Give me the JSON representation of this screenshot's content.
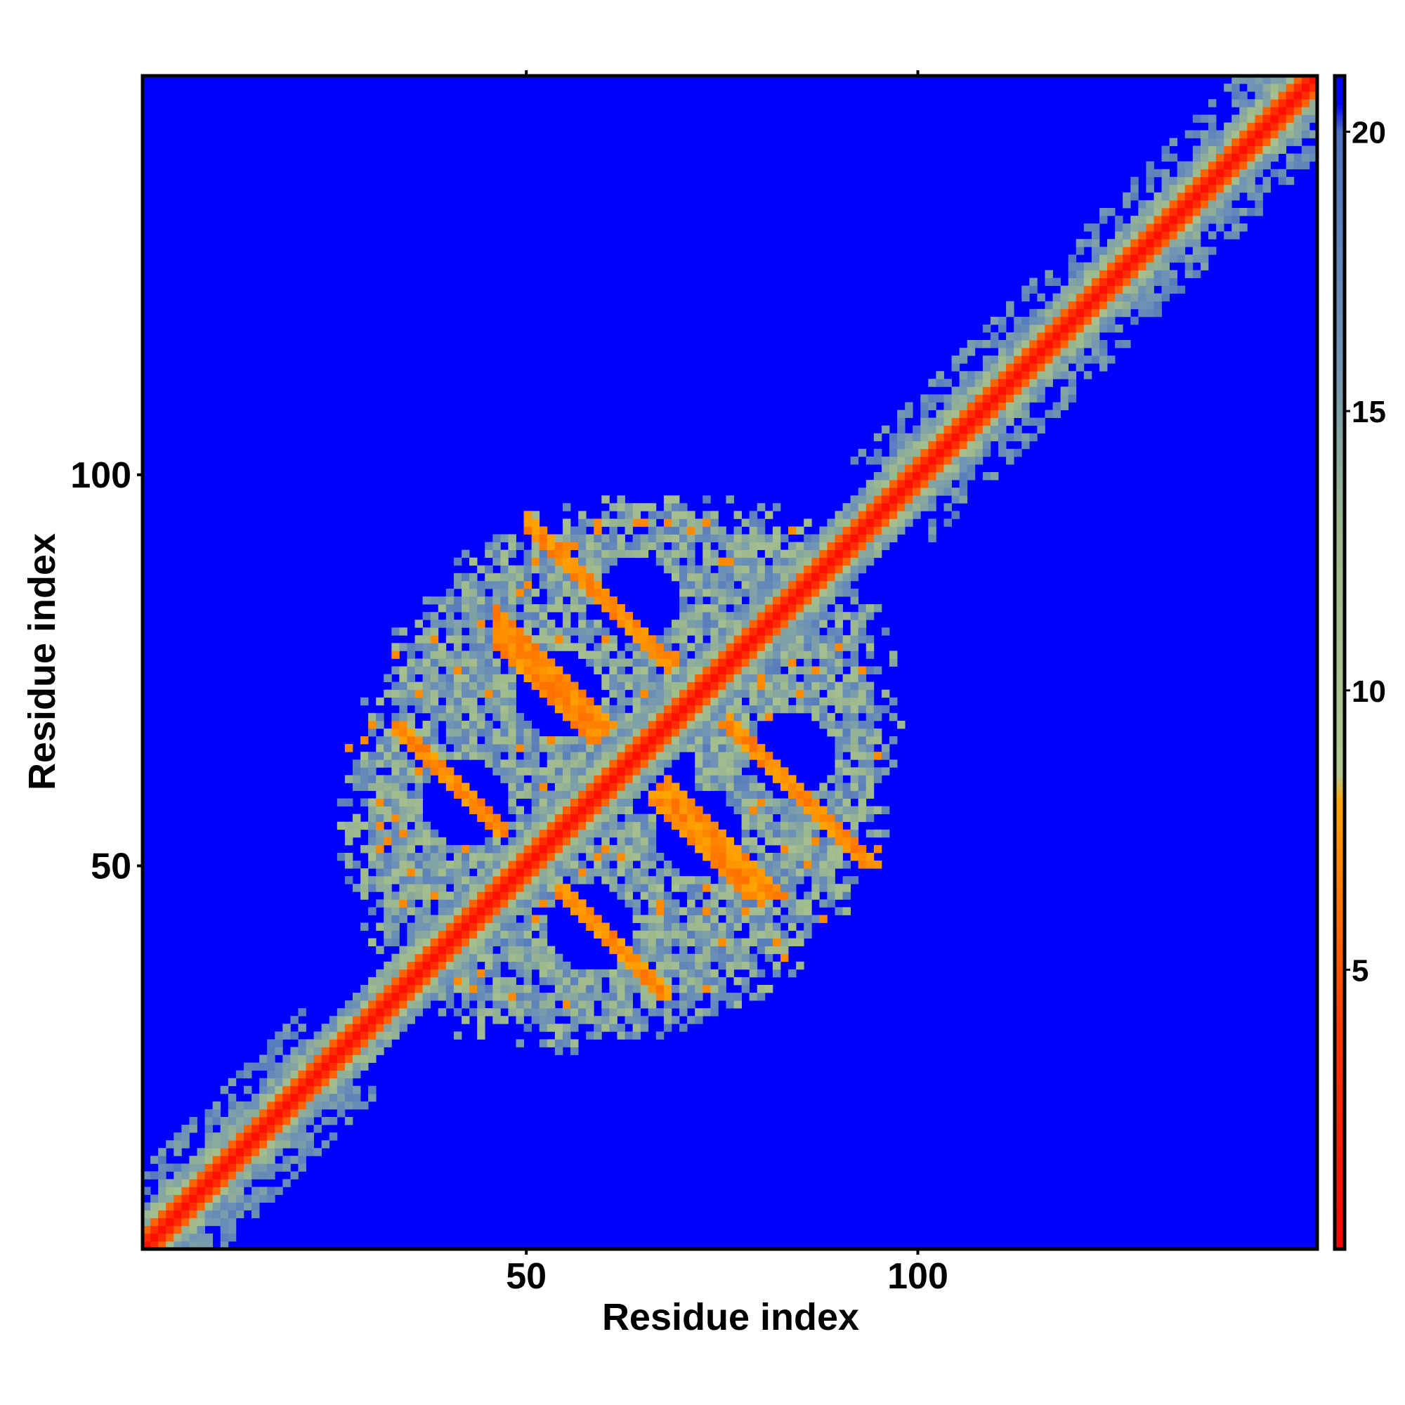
{
  "chart_data": {
    "type": "heatmap",
    "title": "",
    "xlabel": "Residue index",
    "ylabel": "Residue index",
    "n_residues": 151,
    "x_range": [
      1,
      151
    ],
    "y_range": [
      1,
      151
    ],
    "x_ticks": [
      50,
      100
    ],
    "y_ticks": [
      50,
      100
    ],
    "colorbar": {
      "range": [
        0,
        21
      ],
      "ticks": [
        5,
        10,
        15,
        20
      ],
      "stops": [
        {
          "value": 0,
          "color": "#FF0000"
        },
        {
          "value": 4,
          "color": "#FF3A00"
        },
        {
          "value": 8,
          "color": "#FFA500"
        },
        {
          "value": 8.5,
          "color": "#B3C890"
        },
        {
          "value": 13,
          "color": "#9CB88E"
        },
        {
          "value": 16,
          "color": "#6E93B5"
        },
        {
          "value": 20,
          "color": "#4E73C0"
        },
        {
          "value": 20.5,
          "color": "#0000FF"
        }
      ]
    },
    "contact_map_description": {
      "diagonal_band": "distance ~0-5 along i=j for all residues",
      "near_diagonal_halo": "distance ~8-18 within |i-j|<6 for residues 1-151",
      "core_domain": {
        "residue_range": [
          24,
          101
        ],
        "distance_range": [
          6,
          20
        ]
      },
      "antiparallel_strands": [
        {
          "i": [
            45,
            56
          ],
          "j": [
            56,
            69
          ]
        },
        {
          "i": [
            58,
            68
          ],
          "j": [
            48,
            59
          ]
        },
        {
          "i": [
            62,
            72
          ],
          "j": [
            72,
            83
          ]
        },
        {
          "i": [
            70,
            80
          ],
          "j": [
            60,
            70
          ]
        }
      ]
    },
    "grid": false,
    "legend": "colorbar-right"
  }
}
